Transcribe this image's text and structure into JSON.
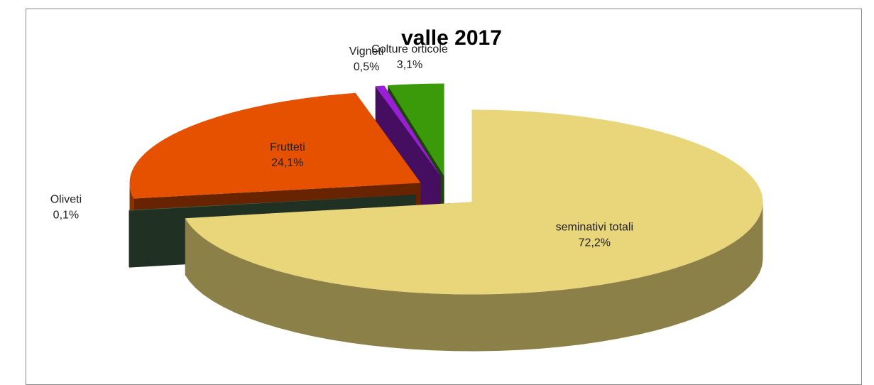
{
  "chart_data": {
    "type": "pie3d",
    "title": "valle 2017",
    "categories": [
      "seminativi totali",
      "Oliveti",
      "Frutteti",
      "Vigneti",
      "Colture orticole"
    ],
    "values": [
      72.2,
      0.1,
      24.1,
      0.5,
      3.1
    ],
    "value_labels": [
      "72,2%",
      "0,1%",
      "24,1%",
      "0,5%",
      "3,1%"
    ],
    "colors": [
      "#e9d57a",
      "#466b4c",
      "#e65100",
      "#9a1ed6",
      "#3a9a0a"
    ]
  }
}
